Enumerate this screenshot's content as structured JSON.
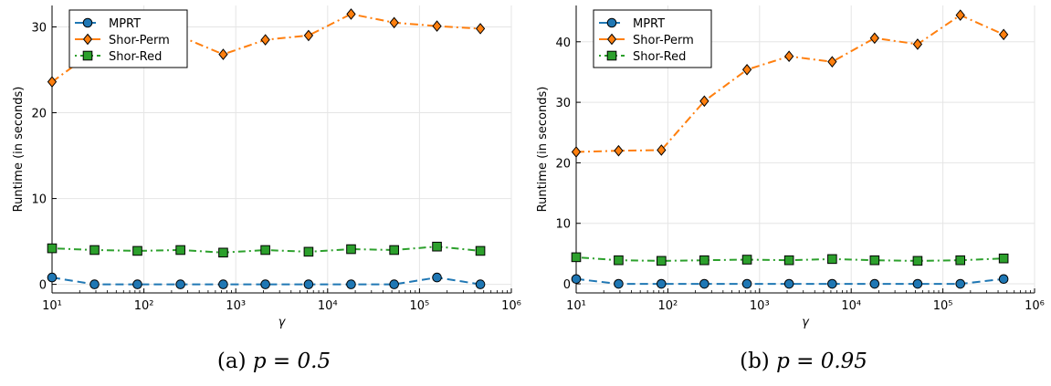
{
  "colors": {
    "MPRT": "#1f77b4",
    "Shor-Perm": "#ff7f0e",
    "Shor-Red": "#2ca02c",
    "grid": "#e5e5e5"
  },
  "chart_data": [
    {
      "type": "line",
      "caption_prefix": "(a) ",
      "caption_math": "p = 0.5",
      "xlabel": "γ",
      "ylabel": "Runtime (in seconds)",
      "xscale": "log",
      "xlim": [
        10,
        1000000
      ],
      "ylim": [
        -1,
        32.5
      ],
      "xticks": [
        1,
        2,
        3,
        4,
        5,
        6
      ],
      "yticks": [
        0,
        10,
        20,
        30
      ],
      "grid": true,
      "legend": "top-left",
      "x": [
        10,
        29,
        85,
        250,
        730,
        2100,
        6200,
        18000,
        53000,
        155000,
        460000
      ],
      "series": [
        {
          "name": "MPRT",
          "marker": "circle",
          "dash": "dashed",
          "values": [
            0.8,
            0,
            0,
            0,
            0,
            0,
            0,
            0,
            0,
            0.8,
            0
          ]
        },
        {
          "name": "Shor-Perm",
          "marker": "diamond",
          "dash": "dashdot",
          "values": [
            23.6,
            27.2,
            28.4,
            28.9,
            26.8,
            28.5,
            29.0,
            31.5,
            30.5,
            30.1,
            29.8
          ]
        },
        {
          "name": "Shor-Red",
          "marker": "square",
          "dash": "dotdash",
          "values": [
            4.2,
            4.0,
            3.9,
            4.0,
            3.7,
            4.0,
            3.8,
            4.1,
            4.0,
            4.4,
            3.9
          ]
        }
      ]
    },
    {
      "type": "line",
      "caption_prefix": "(b) ",
      "caption_math": "p = 0.95",
      "xlabel": "γ",
      "ylabel": "Runtime (in seconds)",
      "xscale": "log",
      "xlim": [
        10,
        1000000
      ],
      "ylim": [
        -1.5,
        46
      ],
      "xticks": [
        1,
        2,
        3,
        4,
        5,
        6
      ],
      "yticks": [
        0,
        10,
        20,
        30,
        40
      ],
      "grid": true,
      "legend": "top-left",
      "x": [
        10,
        29,
        85,
        250,
        730,
        2100,
        6200,
        18000,
        53000,
        155000,
        460000
      ],
      "series": [
        {
          "name": "MPRT",
          "marker": "circle",
          "dash": "dashed",
          "values": [
            0.8,
            0,
            0,
            0,
            0,
            0,
            0,
            0,
            0,
            0,
            0.8
          ]
        },
        {
          "name": "Shor-Perm",
          "marker": "diamond",
          "dash": "dashdot",
          "values": [
            21.8,
            22.0,
            22.1,
            30.2,
            35.4,
            37.6,
            36.7,
            40.6,
            39.6,
            44.4,
            41.2
          ]
        },
        {
          "name": "Shor-Red",
          "marker": "square",
          "dash": "dotdash",
          "values": [
            4.4,
            3.9,
            3.8,
            3.9,
            4.0,
            3.9,
            4.1,
            3.9,
            3.8,
            3.9,
            4.2
          ]
        }
      ]
    }
  ]
}
